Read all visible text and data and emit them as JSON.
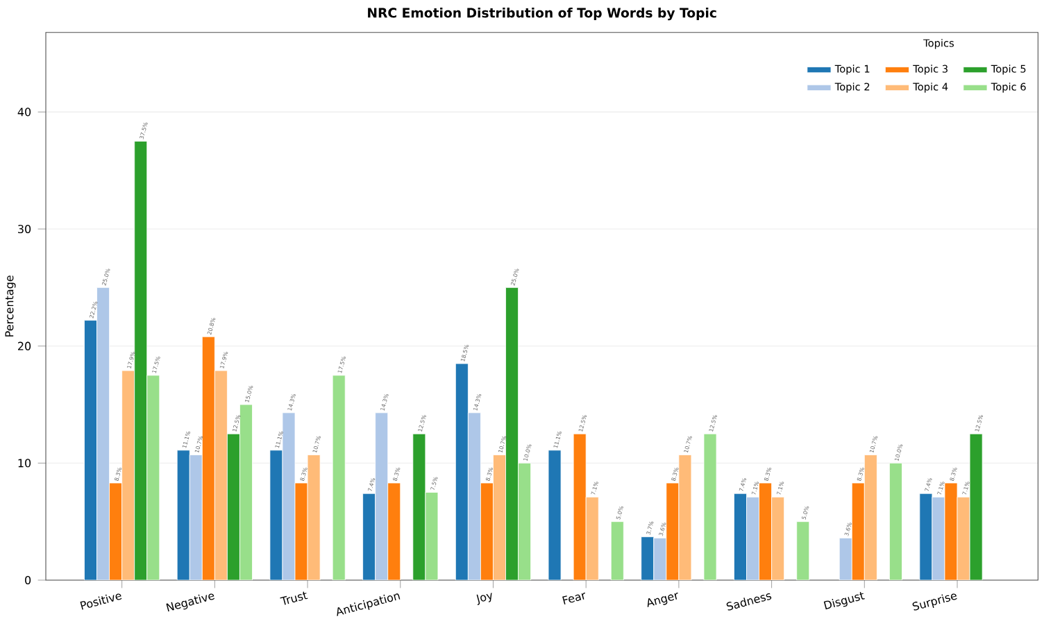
{
  "chart_data": {
    "type": "bar",
    "title": "NRC Emotion Distribution of Top Words by Topic",
    "ylabel": "Percentage",
    "legend_title": "Topics",
    "categories": [
      "Positive",
      "Negative",
      "Trust",
      "Anticipation",
      "Joy",
      "Fear",
      "Anger",
      "Sadness",
      "Disgust",
      "Surprise"
    ],
    "series": [
      {
        "name": "Topic 1",
        "color": "#1f77b4",
        "values": [
          22.2,
          11.1,
          11.1,
          7.4,
          18.5,
          11.1,
          3.7,
          7.4,
          null,
          7.4
        ],
        "value_labels": [
          "22.2%",
          "11.1%",
          "11.1%",
          "7.4%",
          "18.5%",
          "11.1%",
          "3.7%",
          "7.4%",
          null,
          "7.4%"
        ]
      },
      {
        "name": "Topic 2",
        "color": "#aec7e8",
        "values": [
          25.0,
          10.7,
          14.3,
          14.3,
          14.3,
          null,
          3.6,
          7.1,
          3.6,
          7.1
        ],
        "value_labels": [
          "25.0%",
          "10.7%",
          "14.3%",
          "14.3%",
          "14.3%",
          null,
          "3.6%",
          "7.1%",
          "3.6%",
          "7.1%"
        ]
      },
      {
        "name": "Topic 3",
        "color": "#ff7f0e",
        "values": [
          8.3,
          20.8,
          8.3,
          8.3,
          8.3,
          12.5,
          8.3,
          8.3,
          8.3,
          8.3
        ],
        "value_labels": [
          "8.3%",
          "20.8%",
          "8.3%",
          "8.3%",
          "8.3%",
          "12.5%",
          "8.3%",
          "8.3%",
          "8.3%",
          "8.3%"
        ]
      },
      {
        "name": "Topic 4",
        "color": "#ffbb78",
        "values": [
          17.9,
          17.9,
          10.7,
          null,
          10.7,
          7.1,
          10.7,
          7.1,
          10.7,
          7.1
        ],
        "value_labels": [
          "17.9%",
          "17.9%",
          "10.7%",
          null,
          "10.7%",
          "7.1%",
          "10.7%",
          "7.1%",
          "10.7%",
          "7.1%"
        ]
      },
      {
        "name": "Topic 5",
        "color": "#2ca02c",
        "values": [
          37.5,
          12.5,
          null,
          12.5,
          25.0,
          null,
          null,
          null,
          null,
          12.5
        ],
        "value_labels": [
          "37.5%",
          "12.5%",
          null,
          "12.5%",
          "25.0%",
          null,
          null,
          null,
          null,
          "12.5%"
        ]
      },
      {
        "name": "Topic 6",
        "color": "#98df8a",
        "values": [
          17.5,
          15.0,
          17.5,
          7.5,
          10.0,
          5.0,
          12.5,
          5.0,
          10.0,
          null
        ],
        "value_labels": [
          "17.5%",
          "15.0%",
          "17.5%",
          "7.5%",
          "10.0%",
          "5.0%",
          "12.5%",
          "5.0%",
          "10.0%",
          null
        ]
      }
    ],
    "ylim": [
      0,
      46.8
    ],
    "yticks": [
      0,
      10,
      20,
      30,
      40
    ],
    "grid": "y",
    "legend": "top right"
  }
}
